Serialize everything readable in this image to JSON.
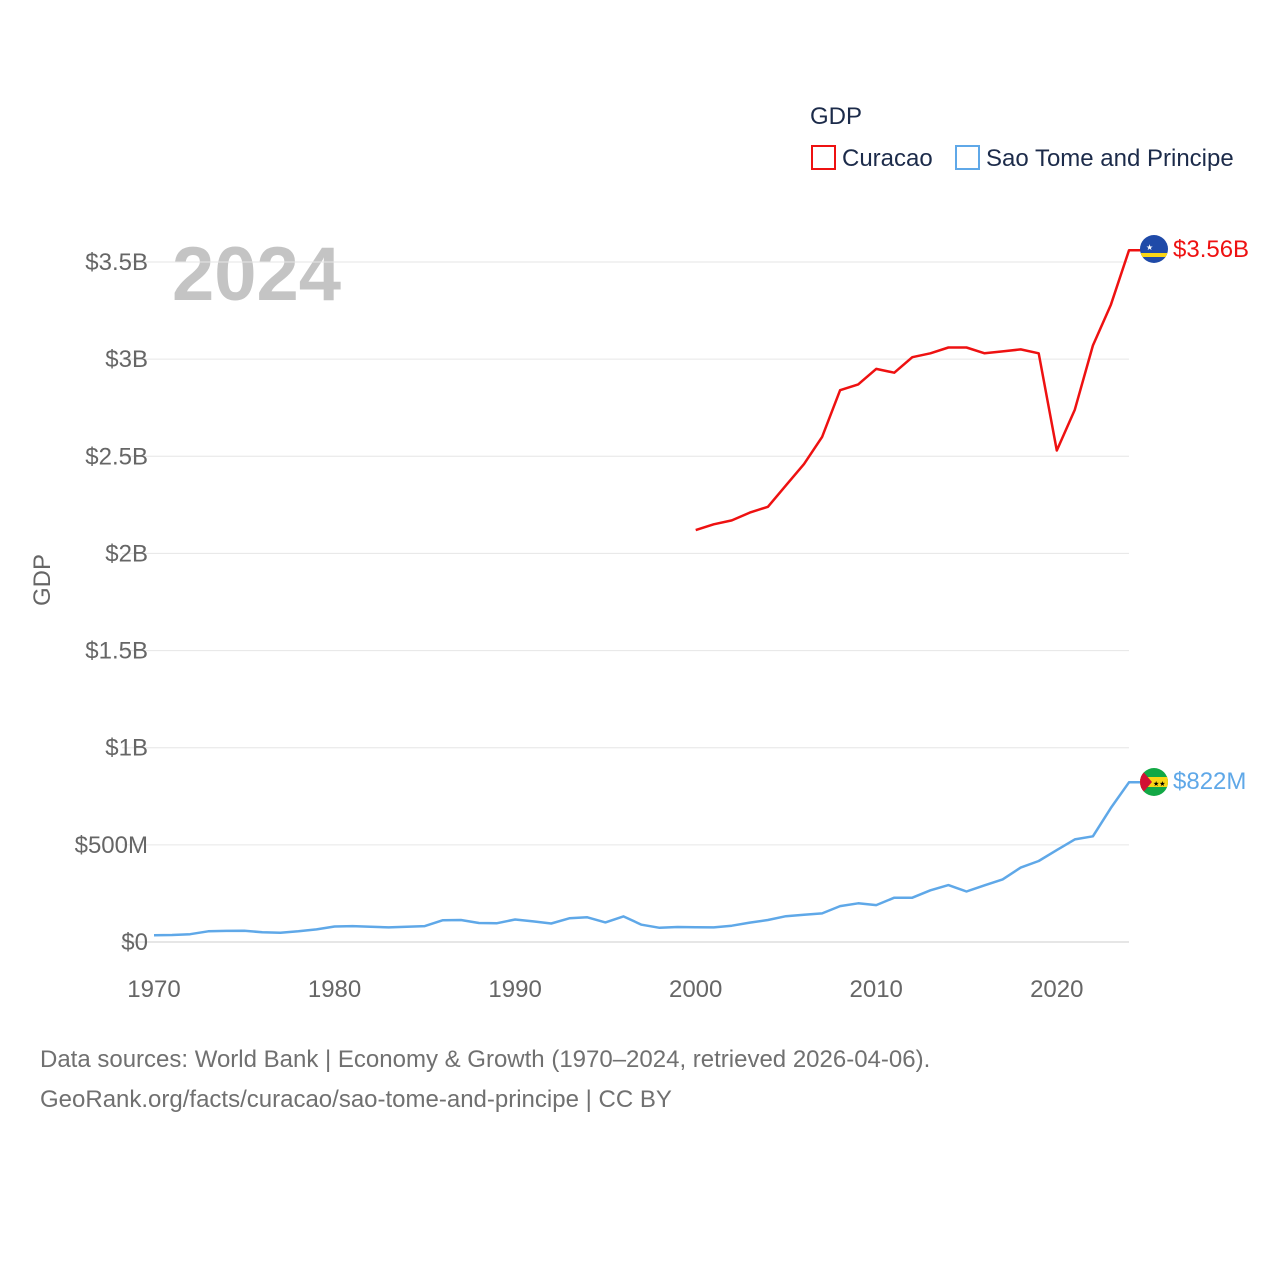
{
  "chart_data": {
    "type": "line",
    "title": "",
    "legend_title": "GDP",
    "ylabel": "GDP",
    "xlabel": "",
    "year_label": "2024",
    "xlim": [
      1970,
      2024
    ],
    "ylim": [
      0,
      3.5
    ],
    "y_ticks": [
      {
        "value": 0,
        "label": "$0"
      },
      {
        "value": 0.5,
        "label": "$500M"
      },
      {
        "value": 1.0,
        "label": "$1B"
      },
      {
        "value": 1.5,
        "label": "$1.5B"
      },
      {
        "value": 2.0,
        "label": "$2B"
      },
      {
        "value": 2.5,
        "label": "$2.5B"
      },
      {
        "value": 3.0,
        "label": "$3B"
      },
      {
        "value": 3.5,
        "label": "$3.5B"
      }
    ],
    "x_ticks": [
      {
        "value": 1970,
        "label": "1970"
      },
      {
        "value": 1980,
        "label": "1980"
      },
      {
        "value": 1990,
        "label": "1990"
      },
      {
        "value": 2000,
        "label": "2000"
      },
      {
        "value": 2010,
        "label": "2010"
      },
      {
        "value": 2020,
        "label": "2020"
      }
    ],
    "grid": true,
    "legend_position": "top-right",
    "units": "billions USD",
    "series": [
      {
        "name": "Curacao",
        "color": "#ee1111",
        "end_label": "$3.56B",
        "flag": "curacao-flag-icon",
        "x": [
          2000,
          2001,
          2002,
          2003,
          2004,
          2005,
          2006,
          2007,
          2008,
          2009,
          2010,
          2011,
          2012,
          2013,
          2014,
          2015,
          2016,
          2017,
          2018,
          2019,
          2020,
          2021,
          2022,
          2023,
          2024
        ],
        "values": [
          2.12,
          2.15,
          2.17,
          2.21,
          2.24,
          2.35,
          2.46,
          2.6,
          2.84,
          2.87,
          2.95,
          2.93,
          3.01,
          3.03,
          3.06,
          3.06,
          3.03,
          3.04,
          3.05,
          3.03,
          2.53,
          2.74,
          3.07,
          3.28,
          3.56
        ]
      },
      {
        "name": "Sao Tome and Principe",
        "color": "#5fa8e8",
        "end_label": "$822M",
        "flag": "sao-tome-flag-icon",
        "x": [
          1970,
          1971,
          1972,
          1973,
          1974,
          1975,
          1976,
          1977,
          1978,
          1979,
          1980,
          1981,
          1982,
          1983,
          1984,
          1985,
          1986,
          1987,
          1988,
          1989,
          1990,
          1991,
          1992,
          1993,
          1994,
          1995,
          1996,
          1997,
          1998,
          1999,
          2000,
          2001,
          2002,
          2003,
          2004,
          2005,
          2006,
          2007,
          2008,
          2009,
          2010,
          2011,
          2012,
          2013,
          2014,
          2015,
          2016,
          2017,
          2018,
          2019,
          2020,
          2021,
          2022,
          2023,
          2024
        ],
        "values": [
          0.035,
          0.036,
          0.04,
          0.055,
          0.057,
          0.058,
          0.05,
          0.048,
          0.055,
          0.065,
          0.08,
          0.082,
          0.079,
          0.075,
          0.078,
          0.082,
          0.112,
          0.113,
          0.098,
          0.097,
          0.116,
          0.106,
          0.095,
          0.122,
          0.127,
          0.101,
          0.132,
          0.089,
          0.073,
          0.077,
          0.076,
          0.075,
          0.084,
          0.1,
          0.113,
          0.133,
          0.14,
          0.147,
          0.185,
          0.199,
          0.19,
          0.228,
          0.228,
          0.266,
          0.293,
          0.26,
          0.292,
          0.322,
          0.383,
          0.417,
          0.473,
          0.528,
          0.544,
          0.69,
          0.822
        ]
      }
    ]
  },
  "footer": {
    "line1": "Data sources: World Bank | Economy & Growth (1970–2024, retrieved 2026-04-06).",
    "line2": "GeoRank.org/facts/curacao/sao-tome-and-principe | CC BY"
  }
}
